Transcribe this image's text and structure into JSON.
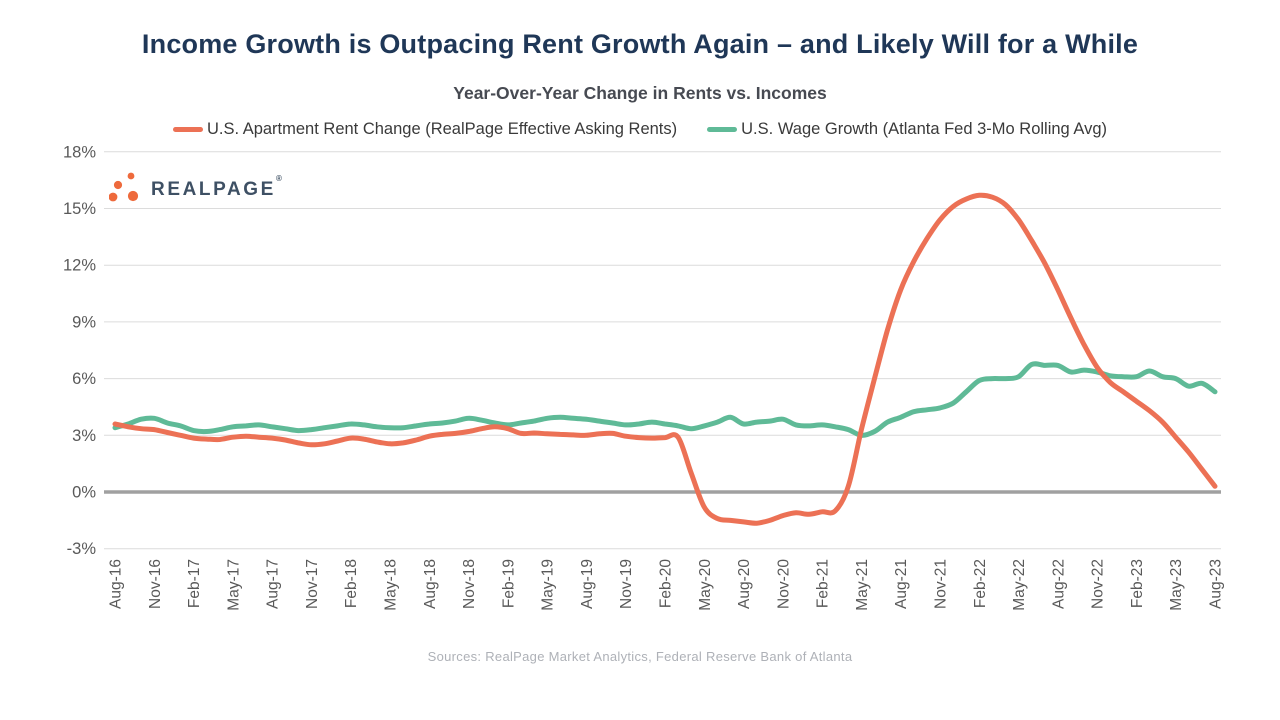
{
  "title": "Income Growth is Outpacing Rent Growth Again – and Likely Will for a While",
  "subtitle": "Year-Over-Year Change in Rents vs. Incomes",
  "sources": "Sources: RealPage Market Analytics, Federal Reserve Bank of Atlanta",
  "logo": {
    "text": "REALPAGE",
    "reg_mark": "®",
    "dot_color": "#ee6a3c",
    "text_color": "#3e5064"
  },
  "chart_data": {
    "type": "line",
    "title": "Year-Over-Year Change in Rents vs. Incomes",
    "x_unit": "month",
    "x_start": "Aug-16",
    "x_end": "Aug-23",
    "x_tick_labels": [
      "Aug-16",
      "Nov-16",
      "Feb-17",
      "May-17",
      "Aug-17",
      "Nov-17",
      "Feb-18",
      "May-18",
      "Aug-18",
      "Nov-18",
      "Feb-19",
      "May-19",
      "Aug-19",
      "Nov-19",
      "Feb-20",
      "May-20",
      "Aug-20",
      "Nov-20",
      "Feb-21",
      "May-21",
      "Aug-21",
      "Nov-21",
      "Feb-22",
      "May-22",
      "Aug-22",
      "Nov-22",
      "Feb-23",
      "May-23",
      "Aug-23"
    ],
    "months_per_tick": 3,
    "y_ticks": [
      18,
      15,
      12,
      9,
      6,
      3,
      0,
      -3
    ],
    "y_tick_suffix": "%",
    "ylim": [
      -3,
      18
    ],
    "grid": "horizontal",
    "zero_line": true,
    "legend_position": "top",
    "series": [
      {
        "name": "U.S. Apartment Rent Change (RealPage Effective Asking Rents)",
        "color": "#ec7155",
        "values": [
          3.6,
          3.45,
          3.35,
          3.3,
          3.15,
          3.0,
          2.85,
          2.8,
          2.78,
          2.9,
          2.95,
          2.9,
          2.85,
          2.75,
          2.6,
          2.5,
          2.55,
          2.7,
          2.85,
          2.8,
          2.65,
          2.55,
          2.6,
          2.75,
          2.95,
          3.05,
          3.1,
          3.2,
          3.35,
          3.45,
          3.35,
          3.1,
          3.12,
          3.08,
          3.05,
          3.02,
          3.0,
          3.08,
          3.1,
          2.95,
          2.88,
          2.85,
          2.88,
          2.9,
          1.0,
          -0.8,
          -1.4,
          -1.5,
          -1.58,
          -1.65,
          -1.5,
          -1.25,
          -1.1,
          -1.18,
          -1.05,
          -1.0,
          0.3,
          3.3,
          6.0,
          8.6,
          10.7,
          12.2,
          13.4,
          14.4,
          15.1,
          15.5,
          15.7,
          15.6,
          15.2,
          14.4,
          13.3,
          12.1,
          10.7,
          9.2,
          7.8,
          6.6,
          5.8,
          5.3,
          4.8,
          4.3,
          3.7,
          2.9,
          2.1,
          1.2,
          0.3
        ]
      },
      {
        "name": "U.S. Wage Growth (Atlanta Fed 3-Mo Rolling Avg)",
        "color": "#5fba97",
        "values": [
          3.4,
          3.6,
          3.85,
          3.9,
          3.65,
          3.5,
          3.25,
          3.2,
          3.3,
          3.45,
          3.5,
          3.55,
          3.45,
          3.35,
          3.25,
          3.3,
          3.4,
          3.5,
          3.6,
          3.55,
          3.45,
          3.4,
          3.4,
          3.5,
          3.6,
          3.65,
          3.75,
          3.9,
          3.8,
          3.65,
          3.55,
          3.65,
          3.75,
          3.9,
          3.95,
          3.9,
          3.85,
          3.75,
          3.65,
          3.55,
          3.6,
          3.7,
          3.6,
          3.5,
          3.35,
          3.5,
          3.7,
          3.95,
          3.6,
          3.7,
          3.75,
          3.85,
          3.55,
          3.5,
          3.55,
          3.45,
          3.3,
          3.0,
          3.2,
          3.7,
          3.95,
          4.25,
          4.35,
          4.45,
          4.7,
          5.3,
          5.9,
          6.0,
          6.0,
          6.1,
          6.75,
          6.7,
          6.7,
          6.35,
          6.45,
          6.35,
          6.15,
          6.1,
          6.1,
          6.4,
          6.1,
          6.0,
          5.6,
          5.75,
          5.3
        ]
      }
    ]
  },
  "style": {
    "grid_color": "#dcdcdc",
    "zero_line_color": "#a0a0a0",
    "axis_label_color": "#595959"
  }
}
